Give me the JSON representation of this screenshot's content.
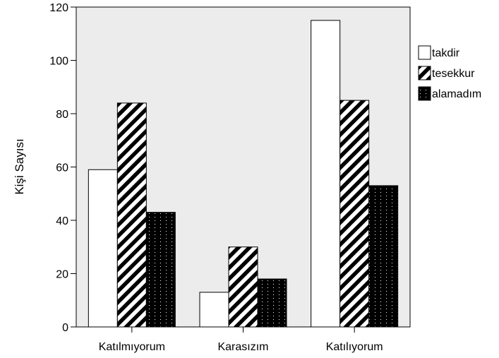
{
  "chart_data": {
    "type": "bar",
    "categories": [
      "Katılmıyorum",
      "Karasızım",
      "Katılıyorum"
    ],
    "series": [
      {
        "name": "takdir",
        "values": [
          59,
          13,
          115
        ],
        "pattern": "none"
      },
      {
        "name": "tesekkur",
        "values": [
          84,
          30,
          85
        ],
        "pattern": "diagonal"
      },
      {
        "name": "alamadım",
        "values": [
          43,
          18,
          53
        ],
        "pattern": "dotted"
      }
    ],
    "ylabel": "Kişi Sayısı",
    "xlabel": "",
    "ylim": [
      0,
      120
    ],
    "yticks": [
      0,
      20,
      40,
      60,
      80,
      100,
      120
    ],
    "grid": false,
    "legend_position": "right",
    "plot_background": "#ececec",
    "bar_stroke": "#000000"
  }
}
